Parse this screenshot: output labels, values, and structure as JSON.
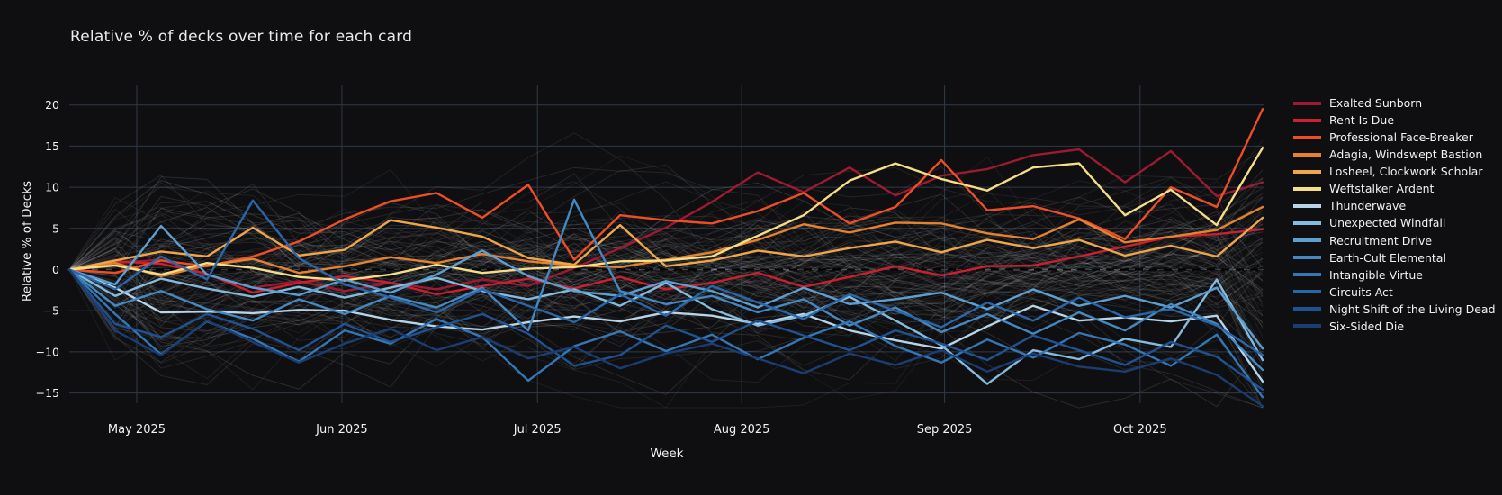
{
  "title": "Relative  % of decks over time for each card",
  "colors": {
    "background": "#0f0f11",
    "grid": "#2e3947",
    "tick_text": "#f2f2f2",
    "zero_dash": "#000000",
    "background_lines": "rgba(235,240,245,0.09)"
  },
  "chart_data": {
    "type": "line",
    "title": "Relative  % of decks over time for each card",
    "xlabel": "Week",
    "ylabel": "Relative % of Decks",
    "x_unit": "week_index",
    "x_range": [
      0,
      26
    ],
    "ylim": [
      -17.5,
      21
    ],
    "grid": true,
    "legend_position": "right",
    "zero_line_dashed": true,
    "x_ticks": [
      {
        "label": "May 2025",
        "week": 1.47
      },
      {
        "label": "Jun 2025",
        "week": 5.94
      },
      {
        "label": "Jul 2025",
        "week": 10.2
      },
      {
        "label": "Aug 2025",
        "week": 14.65
      },
      {
        "label": "Sep 2025",
        "week": 19.07
      },
      {
        "label": "Oct 2025",
        "week": 23.33
      }
    ],
    "y_ticks": [
      20,
      15,
      10,
      5,
      0,
      -5,
      -10,
      -15
    ],
    "series": [
      {
        "name": "Exalted Sunborn",
        "color": "#9e1a33",
        "values": [
          0,
          0.8,
          1.2,
          -0.6,
          -2.2,
          -1.4,
          -2.6,
          -1.6,
          -2.4,
          -1.2,
          -2.0,
          0.2,
          2.6,
          5.1,
          8.2,
          11.8,
          9.4,
          12.4,
          9.0,
          11.4,
          12.2,
          13.9,
          14.6,
          10.6,
          14.4,
          8.9,
          10.6
        ]
      },
      {
        "name": "Rent Is Due",
        "color": "#cc1f30",
        "values": [
          0,
          1.0,
          0.7,
          -0.5,
          -2.8,
          -1.6,
          -0.8,
          -1.6,
          -3.0,
          -2.0,
          -1.1,
          -2.3,
          -0.9,
          -2.4,
          -1.6,
          -0.4,
          -2.1,
          -0.9,
          0.4,
          -0.7,
          0.4,
          0.5,
          1.6,
          2.8,
          4.0,
          4.3,
          4.9
        ]
      },
      {
        "name": "Professional Face-Breaker",
        "color": "#ee4e26",
        "values": [
          0,
          -0.4,
          1.1,
          0.4,
          1.6,
          3.4,
          6.1,
          8.3,
          9.3,
          6.3,
          10.3,
          1.2,
          6.6,
          6.0,
          5.6,
          7.1,
          9.3,
          5.6,
          7.6,
          13.3,
          7.2,
          7.7,
          6.2,
          3.7,
          10.0,
          7.6,
          19.5
        ]
      },
      {
        "name": "Adagia, Windswept Bastion",
        "color": "#e5822f",
        "values": [
          0,
          0.8,
          -0.8,
          0.5,
          1.3,
          -0.4,
          0.4,
          1.5,
          0.8,
          1.9,
          1.0,
          0.5,
          0.3,
          1.2,
          2.1,
          3.6,
          5.5,
          4.5,
          5.7,
          5.6,
          4.4,
          3.7,
          6.1,
          3.3,
          4.0,
          4.8,
          7.6
        ]
      },
      {
        "name": "Losheel, Clockwork Scholar",
        "color": "#efa64a",
        "values": [
          0,
          1.1,
          2.2,
          1.6,
          5.1,
          1.7,
          2.4,
          6.0,
          5.1,
          4.0,
          1.4,
          0.6,
          5.4,
          0.4,
          1.1,
          2.3,
          1.6,
          2.6,
          3.4,
          2.1,
          3.6,
          2.6,
          3.6,
          1.7,
          2.9,
          1.6,
          6.3
        ]
      },
      {
        "name": "Weftstalker Ardent",
        "color": "#f6dd88",
        "values": [
          0,
          0.5,
          -0.6,
          0.8,
          0.2,
          -0.9,
          -1.3,
          -0.6,
          0.6,
          -0.4,
          0.1,
          0.3,
          1.0,
          1.1,
          1.6,
          4.1,
          6.6,
          10.8,
          12.9,
          11.0,
          9.6,
          12.4,
          12.9,
          6.6,
          9.7,
          5.4,
          14.8
        ]
      },
      {
        "name": "Thunderwave",
        "color": "#b8d4e8",
        "values": [
          0,
          -2.2,
          -5.2,
          -5.1,
          -5.3,
          -4.9,
          -5.0,
          -6.1,
          -6.9,
          -7.3,
          -6.4,
          -5.7,
          -6.3,
          -5.2,
          -5.6,
          -6.6,
          -5.4,
          -7.4,
          -8.6,
          -9.6,
          -6.9,
          -4.4,
          -6.2,
          -5.8,
          -6.3,
          -5.6,
          -13.6
        ]
      },
      {
        "name": "Unexpected Windfall",
        "color": "#85bbdd",
        "values": [
          0,
          -3.2,
          -1.1,
          -2.3,
          -3.3,
          -2.1,
          -3.4,
          -2.2,
          -1.0,
          -2.6,
          -3.6,
          -2.4,
          -4.4,
          -1.6,
          -4.8,
          -6.8,
          -5.6,
          -3.3,
          -6.2,
          -9.2,
          -13.9,
          -9.8,
          -10.9,
          -8.4,
          -9.4,
          -1.2,
          -11.0
        ]
      },
      {
        "name": "Recruitment Drive",
        "color": "#5f9fd0",
        "values": [
          0,
          -1.8,
          5.3,
          -0.6,
          -2.2,
          -3.1,
          -1.2,
          -2.8,
          -0.6,
          2.3,
          -0.8,
          -2.6,
          -3.2,
          -1.4,
          -2.6,
          -4.6,
          -2.2,
          -4.2,
          -3.6,
          -2.8,
          -4.8,
          -2.4,
          -4.4,
          -3.2,
          -4.6,
          -2.2,
          -9.6
        ]
      },
      {
        "name": "Earth-Cult Elemental",
        "color": "#4489c2",
        "values": [
          0,
          -4.4,
          -2.6,
          -4.8,
          -6.2,
          -3.6,
          -5.4,
          -3.2,
          -4.6,
          -2.2,
          -7.4,
          8.5,
          -2.6,
          -4.2,
          -3.2,
          -5.2,
          -3.6,
          -6.8,
          -4.6,
          -7.6,
          -5.4,
          -7.8,
          -5.2,
          -7.4,
          -4.2,
          -6.6,
          -12.2
        ]
      },
      {
        "name": "Intangible Virtue",
        "color": "#3377b5",
        "values": [
          0,
          -5.4,
          -10.3,
          -6.3,
          -8.4,
          -11.2,
          -7.4,
          -9.0,
          -6.0,
          -8.2,
          -13.5,
          -9.3,
          -7.5,
          -9.9,
          -7.9,
          -10.9,
          -8.3,
          -6.3,
          -9.3,
          -11.3,
          -8.5,
          -10.7,
          -7.7,
          -9.1,
          -11.7,
          -7.9,
          -15.5
        ]
      },
      {
        "name": "Circuits Act",
        "color": "#2a67a8",
        "values": [
          0,
          -2.4,
          1.6,
          -1.2,
          8.4,
          1.4,
          -1.8,
          -3.4,
          -5.2,
          -2.4,
          -4.4,
          -6.4,
          -3.0,
          -5.6,
          -2.0,
          -4.0,
          -6.0,
          -3.0,
          -5.0,
          -7.0,
          -4.0,
          -6.2,
          -3.4,
          -5.8,
          -4.8,
          -6.8,
          -10.4
        ]
      },
      {
        "name": "Night Shift of the Living Dead",
        "color": "#215290",
        "values": [
          0,
          -6.6,
          -8.2,
          -5.4,
          -7.2,
          -9.8,
          -6.6,
          -8.8,
          -7.0,
          -5.4,
          -7.8,
          -11.7,
          -10.4,
          -6.8,
          -8.8,
          -6.2,
          -8.0,
          -9.8,
          -7.4,
          -9.0,
          -11.0,
          -8.0,
          -9.8,
          -11.6,
          -8.8,
          -10.6,
          -14.6
        ]
      },
      {
        "name": "Six-Sided Die",
        "color": "#1b3d72",
        "values": [
          0,
          -7.4,
          -10.4,
          -6.2,
          -8.8,
          -11.3,
          -9.0,
          -7.2,
          -9.8,
          -8.2,
          -10.8,
          -9.4,
          -12.0,
          -10.2,
          -9.0,
          -10.8,
          -12.6,
          -10.2,
          -11.6,
          -9.8,
          -12.4,
          -10.2,
          -11.8,
          -12.4,
          -10.8,
          -12.8,
          -16.6
        ]
      }
    ],
    "background_series": {
      "description": "unhighlighted cards (dim gray lines)",
      "count": 90,
      "seed": 11,
      "points": 27
    }
  }
}
